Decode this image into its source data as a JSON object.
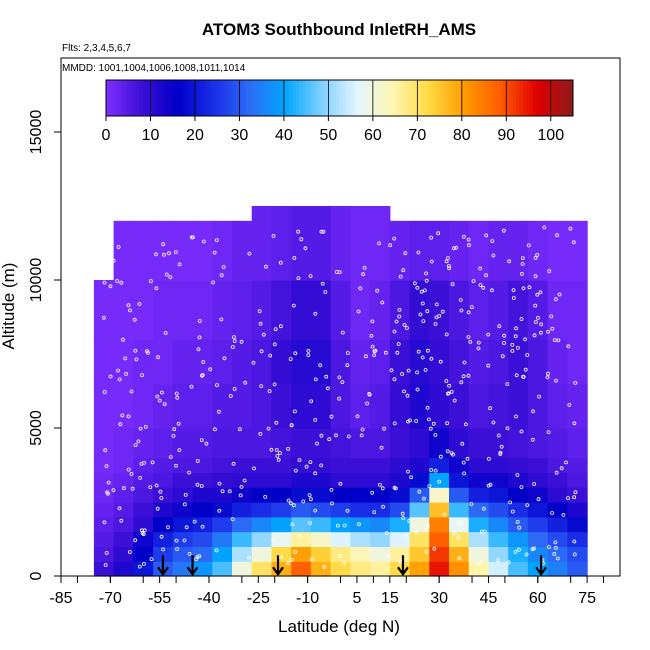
{
  "chart_data": {
    "type": "heatmap",
    "title": "ATOM3 Southbound InletRH_AMS",
    "subtitle_flights": "Flts: 2,3,4,5,6,7",
    "subtitle_dates": "MMDD: 1001,1004,1006,1008,1011,1014",
    "xlabel": "Latitude (deg N)",
    "ylabel": "Altitude (m)",
    "xlim": [
      -85,
      85
    ],
    "ylim": [
      0,
      17500
    ],
    "x_ticks": [
      -85,
      -70,
      -55,
      -40,
      -25,
      -10,
      5,
      15,
      30,
      45,
      60,
      75
    ],
    "y_ticks": [
      0,
      5000,
      10000,
      15000
    ],
    "colorbar": {
      "min": 0,
      "max": 105,
      "ticks": [
        0,
        10,
        20,
        30,
        40,
        50,
        60,
        70,
        80,
        90,
        100
      ],
      "colors": [
        "#7f2fff",
        "#3b0fd6",
        "#0000c8",
        "#1a2ee8",
        "#2d6cf6",
        "#00a6ff",
        "#7fd0ff",
        "#e4f6ff",
        "#fff6b0",
        "#ffd940",
        "#ff9a00",
        "#ff5a00",
        "#e00000",
        "#8b1a1a"
      ]
    },
    "profile_markers_lat": [
      -54,
      -45,
      -19,
      19,
      61
    ],
    "columns_lat": [
      -72,
      -66,
      -60,
      -54,
      -48,
      -42,
      -36,
      -30,
      -24,
      -18,
      -12,
      -6,
      0,
      6,
      12,
      18,
      24,
      30,
      36,
      42,
      48,
      54,
      60,
      66,
      72
    ],
    "layers_alt_m": [
      0,
      500,
      1000,
      1500,
      2000,
      2500,
      3000,
      3500,
      4000,
      5000,
      6500,
      8000,
      10000,
      12000
    ],
    "rh_grid": [
      [
        8,
        12,
        20,
        30,
        34,
        38,
        45,
        60,
        70,
        78,
        88,
        78,
        72,
        68,
        66,
        72,
        80,
        95,
        82,
        65,
        55,
        45,
        40,
        35,
        30
      ],
      [
        6,
        10,
        16,
        26,
        30,
        32,
        40,
        52,
        60,
        72,
        80,
        74,
        68,
        64,
        60,
        66,
        75,
        92,
        78,
        60,
        50,
        42,
        36,
        32,
        28
      ],
      [
        5,
        8,
        14,
        22,
        26,
        28,
        34,
        44,
        50,
        58,
        66,
        62,
        56,
        52,
        50,
        56,
        70,
        88,
        70,
        52,
        44,
        38,
        32,
        28,
        24
      ],
      [
        4,
        6,
        10,
        16,
        20,
        22,
        26,
        32,
        36,
        40,
        46,
        44,
        40,
        38,
        36,
        42,
        60,
        84,
        58,
        42,
        36,
        30,
        26,
        22,
        18
      ],
      [
        3,
        5,
        8,
        12,
        14,
        16,
        18,
        22,
        24,
        26,
        30,
        28,
        26,
        24,
        24,
        28,
        46,
        76,
        44,
        32,
        28,
        24,
        20,
        16,
        12
      ],
      [
        2,
        4,
        6,
        8,
        10,
        12,
        12,
        14,
        16,
        16,
        18,
        18,
        16,
        16,
        16,
        18,
        30,
        62,
        30,
        22,
        20,
        16,
        14,
        10,
        8
      ],
      [
        2,
        3,
        5,
        6,
        8,
        8,
        9,
        10,
        10,
        10,
        12,
        12,
        10,
        10,
        10,
        12,
        18,
        40,
        20,
        14,
        14,
        12,
        10,
        8,
        6
      ],
      [
        1,
        2,
        4,
        5,
        6,
        6,
        7,
        8,
        8,
        8,
        9,
        9,
        8,
        8,
        8,
        10,
        12,
        22,
        14,
        10,
        10,
        9,
        8,
        6,
        5
      ],
      [
        1,
        2,
        3,
        4,
        5,
        5,
        6,
        6,
        6,
        7,
        8,
        8,
        7,
        6,
        6,
        8,
        10,
        14,
        10,
        8,
        8,
        7,
        6,
        5,
        4
      ],
      [
        1,
        1,
        2,
        3,
        4,
        4,
        5,
        5,
        6,
        8,
        10,
        10,
        6,
        4,
        5,
        9,
        12,
        10,
        8,
        6,
        7,
        8,
        6,
        4,
        3
      ],
      [
        1,
        1,
        2,
        2,
        3,
        3,
        4,
        5,
        6,
        9,
        11,
        11,
        6,
        3,
        4,
        8,
        11,
        9,
        7,
        5,
        6,
        8,
        6,
        3,
        2
      ],
      [
        1,
        1,
        1,
        2,
        2,
        2,
        3,
        4,
        5,
        7,
        9,
        9,
        5,
        2,
        3,
        6,
        9,
        8,
        6,
        4,
        5,
        7,
        5,
        2,
        2
      ],
      [
        1,
        1,
        1,
        1,
        1,
        1,
        2,
        3,
        3,
        4,
        5,
        5,
        3,
        2,
        2,
        3,
        4,
        4,
        3,
        2,
        3,
        3,
        2,
        1,
        1
      ]
    ]
  }
}
